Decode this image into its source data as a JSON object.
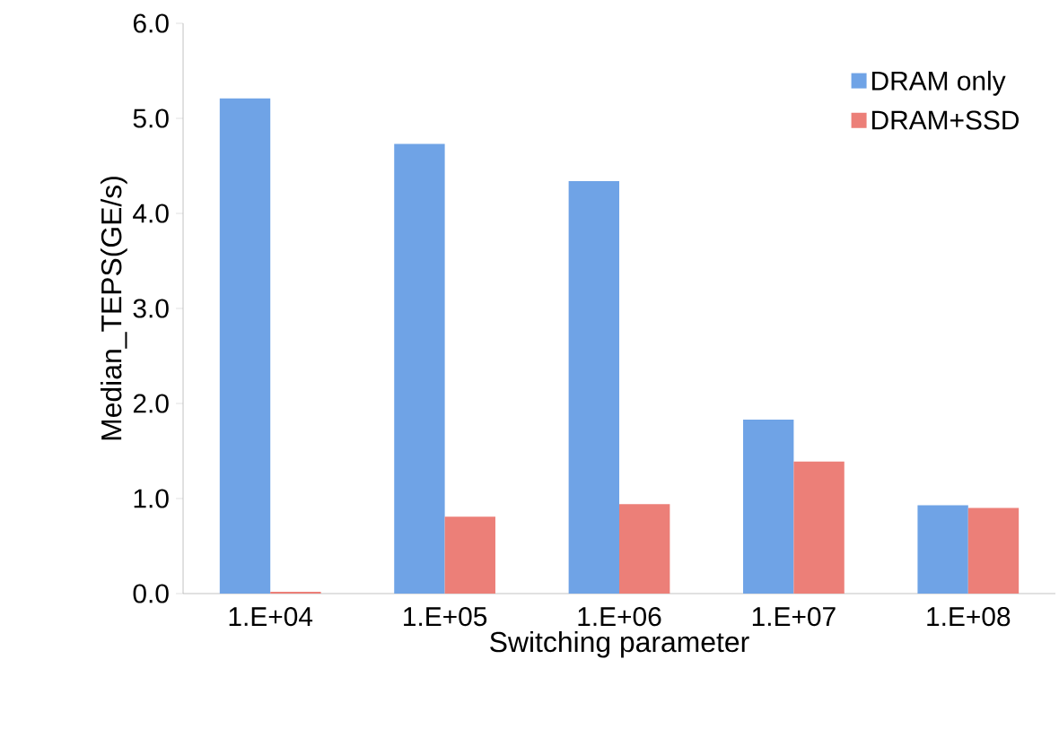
{
  "chart_data": {
    "type": "bar",
    "xlabel": "Switching parameter",
    "ylabel": "Median_TEPS(GE/s)",
    "categories": [
      "1.E+04",
      "1.E+05",
      "1.E+06",
      "1.E+07",
      "1.E+08"
    ],
    "series": [
      {
        "name": "DRAM only",
        "color": "#6fa3e6",
        "values": [
          5.21,
          4.73,
          4.34,
          1.83,
          0.93
        ]
      },
      {
        "name": "DRAM+SSD",
        "color": "#ec7f78",
        "values": [
          0.02,
          0.81,
          0.94,
          1.39,
          0.9
        ]
      }
    ],
    "ylim": [
      0,
      6
    ],
    "yticks": [
      {
        "value": 0,
        "label": "0.0"
      },
      {
        "value": 1,
        "label": "1.0"
      },
      {
        "value": 2,
        "label": "2.0"
      },
      {
        "value": 3,
        "label": "3.0"
      },
      {
        "value": 4,
        "label": "4.0"
      },
      {
        "value": 5,
        "label": "5.0"
      },
      {
        "value": 6,
        "label": "6.0"
      }
    ],
    "grid": false,
    "legend": "top right"
  }
}
